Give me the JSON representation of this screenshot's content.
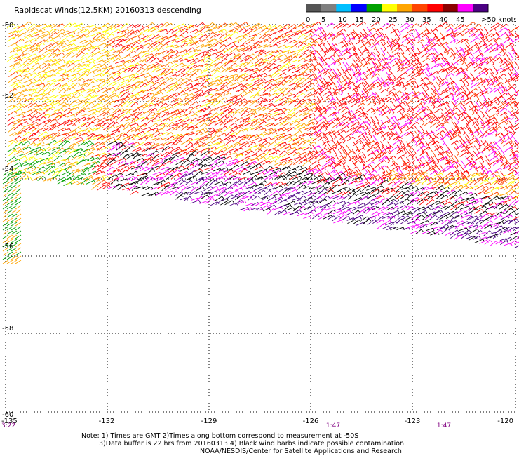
{
  "title": "Rapidscat Winds(12.5KM) 20160313 descending",
  "legend": {
    "labels": [
      "0",
      "5",
      "10",
      "15",
      "20",
      "25",
      "30",
      "35",
      "40",
      "45",
      ">50 knots"
    ],
    "colors": [
      "#555555",
      "#7f7f7f",
      "#00bfff",
      "#0000ff",
      "#00a000",
      "#ffff00",
      "#ffa500",
      "#ff4500",
      "#ff0000",
      "#8b0000",
      "#ff00ff",
      "#4b0082"
    ]
  },
  "axes": {
    "lat_labels": [
      "-50",
      "-52",
      "-54",
      "-56",
      "-58",
      "-60"
    ],
    "lon_labels": [
      "-135",
      "-132",
      "-129",
      "-126",
      "-123",
      "-120"
    ]
  },
  "time_labels": [
    "3:22",
    "1:47",
    "1:47"
  ],
  "notes": [
    "Note: 1) Times are GMT 2)Times along bottom correspond to measurement at -50S",
    "3)Data buffer is 22 hrs from 20160313 4) Black wind barbs indicate possible contamination",
    "NOAA/NESDIS/Center for Satellite Applications and Research"
  ]
}
